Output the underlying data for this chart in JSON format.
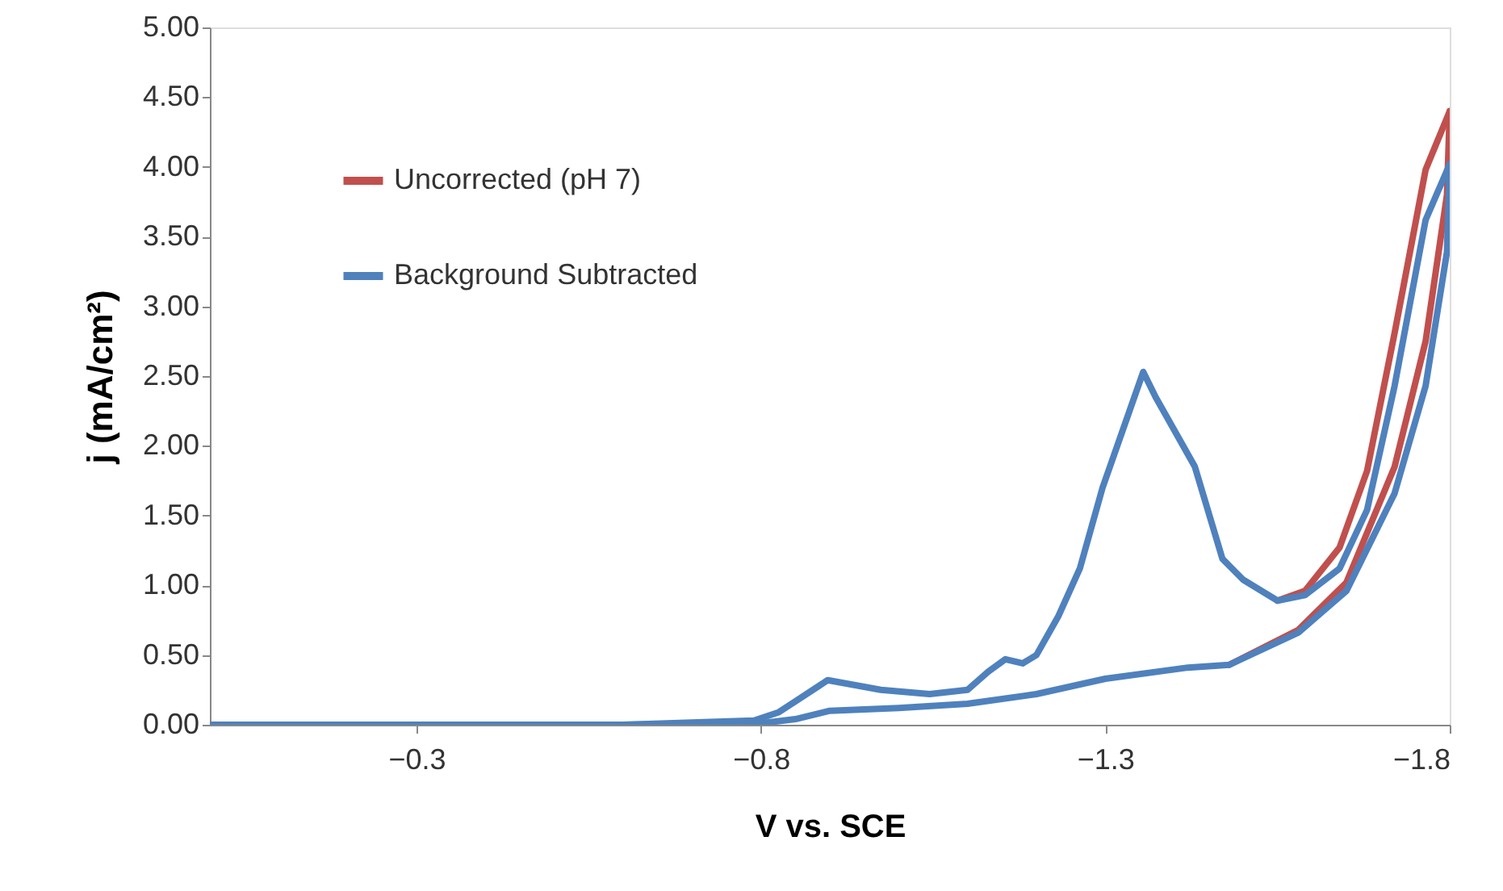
{
  "chart_data": {
    "type": "line",
    "xlabel": "V vs. SCE",
    "ylabel": "j (mA/cm²)",
    "xlim": [
      0,
      -1.8
    ],
    "xticks": [
      -0.3,
      -0.8,
      -1.3,
      -1.8
    ],
    "ylim": [
      0,
      5
    ],
    "yticks": [
      {
        "value": 0,
        "label": "0.00"
      },
      {
        "value": 0.5,
        "label": "0.50"
      },
      {
        "value": 1,
        "label": "1.00"
      },
      {
        "value": 1.5,
        "label": "1.50"
      },
      {
        "value": 2,
        "label": "2.00"
      },
      {
        "value": 2.5,
        "label": "2.50"
      },
      {
        "value": 3,
        "label": "3.00"
      },
      {
        "value": 3.5,
        "label": "3.50"
      },
      {
        "value": 4,
        "label": "4.00"
      },
      {
        "value": 4.5,
        "label": "4.50"
      },
      {
        "value": 5,
        "label": "5.00"
      }
    ],
    "grid": false,
    "legend": "top left",
    "marker": "none",
    "line_style": "solid",
    "series": [
      {
        "name": "Uncorrected (pH 7)",
        "color": "#c0504d",
        "x": [
          -1.48,
          -1.58,
          -1.65,
          -1.72,
          -1.765,
          -1.796,
          -1.8
        ],
        "values": [
          0.43,
          0.68,
          1.02,
          1.85,
          2.75,
          3.8,
          4.4
        ]
      },
      {
        "color": "#c0504d",
        "x": [
          -1.8,
          -1.765,
          -1.72,
          -1.68,
          -1.64,
          -1.59,
          -1.55
        ],
        "values": [
          4.4,
          3.98,
          2.81,
          1.82,
          1.27,
          0.96,
          0.89
        ]
      },
      {
        "name": "Background Subtracted",
        "color": "#4f81bd",
        "x": [
          0,
          -0.2,
          -0.4,
          -0.6,
          -0.8,
          -0.85,
          -0.9,
          -1.0,
          -1.1,
          -1.2,
          -1.3,
          -1.42,
          -1.48,
          -1.58,
          -1.65,
          -1.72,
          -1.765,
          -1.796,
          -1.8
        ],
        "values": [
          0,
          0,
          0,
          0,
          0.01,
          0.04,
          0.1,
          0.12,
          0.15,
          0.22,
          0.33,
          0.41,
          0.43,
          0.66,
          0.96,
          1.66,
          2.43,
          3.39,
          4.02
        ]
      },
      {
        "color": "#4f81bd",
        "x": [
          -1.8,
          -1.765,
          -1.72,
          -1.68,
          -1.64,
          -1.59,
          -1.55,
          -1.5,
          -1.47,
          -1.43,
          -1.373,
          -1.355,
          -1.296,
          -1.263,
          -1.232,
          -1.2,
          -1.18,
          -1.155,
          -1.13,
          -1.1,
          -1.045,
          -0.974,
          -0.897,
          -0.857,
          -0.826,
          -0.79,
          -0.6,
          -0.3,
          0
        ],
        "values": [
          4.02,
          3.62,
          2.43,
          1.54,
          1.12,
          0.93,
          0.89,
          1.04,
          1.19,
          1.85,
          2.35,
          2.53,
          1.7,
          1.12,
          0.78,
          0.5,
          0.44,
          0.47,
          0.38,
          0.25,
          0.22,
          0.25,
          0.32,
          0.19,
          0.09,
          0.03,
          0,
          0,
          0
        ]
      }
    ]
  }
}
